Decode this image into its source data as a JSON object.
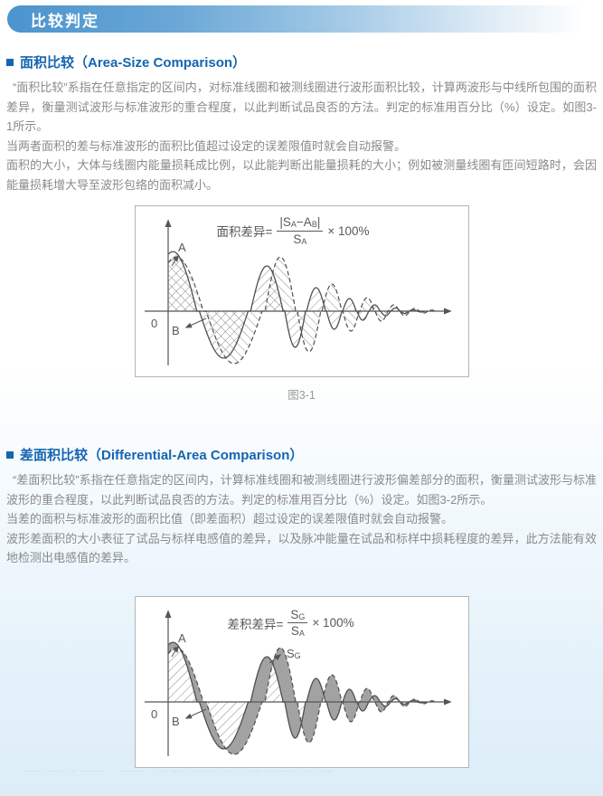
{
  "page": {
    "header_title": "比较判定"
  },
  "colors": {
    "header_blue": "#4b94cd",
    "title_blue": "#1565b0",
    "body_gray": "#8a8a8a",
    "diagram_gray": "#595959",
    "page_bottom_tint": "#dcedf8"
  },
  "section1": {
    "title": "面积比较（Area-Size Comparison）",
    "paragraphs": [
      "“面积比较”系指在任意指定的区间内，对标准线圈和被测线圈进行波形面积比较，计算两波形与中线所包围的面积差异，衡量测试波形与标准波形的重合程度，以此判断试品良否的方法。判定的标准用百分比（%）设定。如图3-1所示。",
      "当两者面积的差与标准波形的面积比值超过设定的误差限值时就会自动报警。",
      "面积的大小，大体与线圈内能量损耗成比例，以此能判断出能量损耗的大小；例如被测量线圈有匝间短路时，会因能量损耗增大导至波形包络的面积减小。"
    ]
  },
  "figure1": {
    "caption": "图3-1",
    "formula": {
      "lead": "面积差异=",
      "num_t1": "|S",
      "num_s1": "A",
      "num_t2": "−A",
      "num_s2": "B",
      "num_t3": "|",
      "den_t": "S",
      "den_s": "A",
      "tail": "× 100%"
    },
    "labels": {
      "a": "A",
      "b": "B",
      "zero": "0"
    }
  },
  "section2": {
    "title": "差面积比较（Differential-Area Comparison）",
    "paragraphs": [
      "“差面积比较”系指在任意指定的区间内，计算标准线圈和被测线圈进行波形偏差部分的面积，衡量测试波形与标准波形的重合程度，以此判断试品良否的方法。判定的标准用百分比（%）设定。如图3-2所示。",
      "当差的面积与标准波形的面积比值（即差面积）超过设定的误差限值时就会自动报警。",
      "波形差面积的大小表征了试品与标样电感值的差异，以及脉冲能量在试品和标样中损耗程度的差异，此方法能有效地检测出电感值的差异。"
    ]
  },
  "figure2": {
    "formula": {
      "lead": "差积差异=",
      "num_t": "S",
      "num_s": "G",
      "den_t": "S",
      "den_s": "A",
      "tail": "× 100%"
    },
    "labels": {
      "a": "A",
      "b": "B",
      "zero": "0",
      "sg_t": "S",
      "sg_s": "G"
    }
  },
  "footer": {
    "faint_text": "·—— ——·   — ——— ·· ——— · ·— —— ———· — ·· —— ———— ·— ——"
  },
  "waves": {
    "startX": 36,
    "axisY": 116,
    "A": {
      "startPhase": 0.4,
      "segments": [
        [
          53,
          66
        ],
        [
          54,
          52
        ],
        [
          36,
          50
        ],
        [
          23,
          40
        ],
        [
          21,
          26
        ],
        [
          17,
          20
        ],
        [
          15,
          14
        ],
        [
          13,
          10
        ],
        [
          12,
          7
        ],
        [
          11,
          5
        ],
        [
          10,
          3.5
        ],
        [
          9,
          2.5
        ],
        [
          9,
          1.5
        ],
        [
          8,
          1
        ]
      ]
    },
    "B": {
      "startPhase": 0.35,
      "segments": [
        [
          60,
          60
        ],
        [
          62,
          58
        ],
        [
          34,
          60
        ],
        [
          26,
          45
        ],
        [
          22,
          30
        ],
        [
          18,
          22
        ],
        [
          16,
          15
        ],
        [
          14,
          11
        ],
        [
          12,
          7
        ],
        [
          11,
          5
        ],
        [
          10,
          3
        ],
        [
          9,
          2
        ],
        [
          8,
          1.2
        ]
      ]
    }
  }
}
